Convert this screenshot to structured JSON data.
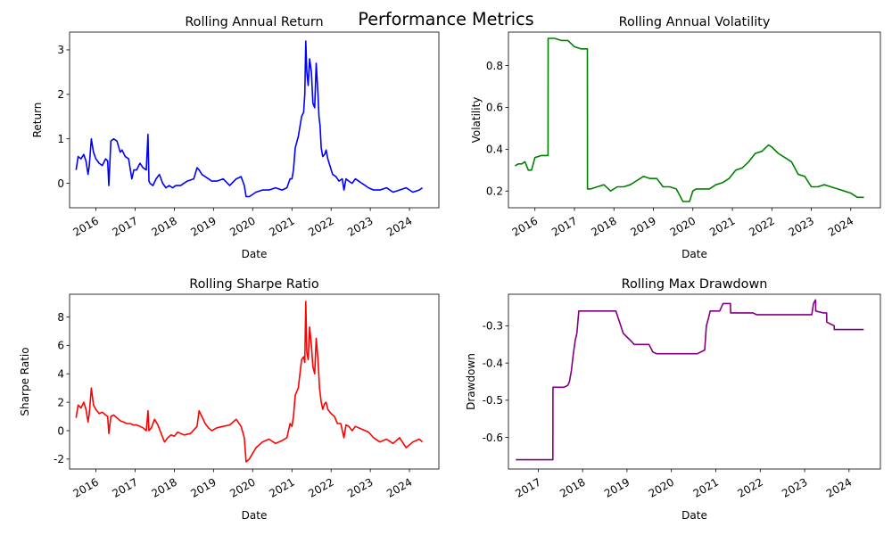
{
  "suptitle": "Performance Metrics",
  "chart_data": [
    {
      "type": "line",
      "title": "Rolling Annual Return",
      "xlabel": "Date",
      "ylabel": "Return",
      "color": "#0000ff",
      "x_tick_labels": [
        "2016",
        "2017",
        "2018",
        "2019",
        "2020",
        "2021",
        "2022",
        "2023",
        "2024"
      ],
      "x_ticks": [
        "2016-01-01",
        "2017-01-01",
        "2018-01-01",
        "2019-01-01",
        "2020-01-01",
        "2021-01-01",
        "2022-01-01",
        "2023-01-01",
        "2024-01-01"
      ],
      "xlim": [
        "2015-05-01",
        "2024-10-01"
      ],
      "y_ticks": [
        0,
        1,
        2,
        3
      ],
      "ylim": [
        -0.55,
        3.4
      ],
      "grid": false,
      "series": [
        {
          "x": [
            "2015-07-01",
            "2015-07-20",
            "2015-08-15",
            "2015-09-10",
            "2015-10-01",
            "2015-10-20",
            "2015-11-01",
            "2015-11-20",
            "2015-12-10",
            "2016-01-01",
            "2016-02-01",
            "2016-03-01",
            "2016-04-01",
            "2016-04-20",
            "2016-05-01",
            "2016-05-20",
            "2016-06-15",
            "2016-07-15",
            "2016-08-15",
            "2016-09-01",
            "2016-10-01",
            "2016-11-01",
            "2016-12-01",
            "2016-12-20",
            "2017-01-15",
            "2017-02-15",
            "2017-03-15",
            "2017-04-15",
            "2017-05-01",
            "2017-05-10",
            "2017-05-20",
            "2017-06-15",
            "2017-07-15",
            "2017-08-15",
            "2017-09-15",
            "2017-10-15",
            "2017-11-15",
            "2017-12-15",
            "2018-01-15",
            "2018-03-01",
            "2018-05-01",
            "2018-07-01",
            "2018-08-01",
            "2018-08-20",
            "2018-09-15",
            "2018-10-15",
            "2018-11-15",
            "2018-12-15",
            "2019-02-01",
            "2019-04-01",
            "2019-06-01",
            "2019-08-01",
            "2019-09-15",
            "2019-10-15",
            "2019-11-01",
            "2019-12-01",
            "2020-02-01",
            "2020-04-01",
            "2020-06-01",
            "2020-08-01",
            "2020-10-01",
            "2020-11-15",
            "2020-12-15",
            "2021-01-01",
            "2021-01-15",
            "2021-02-01",
            "2021-03-01",
            "2021-04-01",
            "2021-04-20",
            "2021-05-01",
            "2021-05-10",
            "2021-05-20",
            "2021-06-01",
            "2021-06-15",
            "2021-07-01",
            "2021-07-15",
            "2021-08-01",
            "2021-08-15",
            "2021-09-01",
            "2021-09-10",
            "2021-09-20",
            "2021-10-01",
            "2021-10-15",
            "2021-11-01",
            "2021-11-15",
            "2021-12-01",
            "2021-12-20",
            "2022-01-15",
            "2022-02-15",
            "2022-03-15",
            "2022-04-15",
            "2022-05-01",
            "2022-05-20",
            "2022-06-15",
            "2022-07-15",
            "2022-08-15",
            "2022-09-15",
            "2022-10-15",
            "2022-11-15",
            "2022-12-15",
            "2023-02-01",
            "2023-04-01",
            "2023-06-01",
            "2023-08-01",
            "2023-10-01",
            "2023-12-01",
            "2024-02-01",
            "2024-04-01",
            "2024-05-01"
          ],
          "y": [
            0.3,
            0.6,
            0.55,
            0.65,
            0.5,
            0.2,
            0.4,
            1.0,
            0.7,
            0.55,
            0.45,
            0.4,
            0.55,
            0.5,
            -0.05,
            0.95,
            1.0,
            0.95,
            0.7,
            0.75,
            0.6,
            0.55,
            0.1,
            0.3,
            0.3,
            0.45,
            0.35,
            0.3,
            1.1,
            0.05,
            0.0,
            -0.05,
            0.1,
            0.2,
            0.0,
            -0.1,
            -0.05,
            -0.1,
            -0.05,
            -0.05,
            0.05,
            0.1,
            0.35,
            0.3,
            0.2,
            0.15,
            0.1,
            0.05,
            0.05,
            0.1,
            -0.05,
            0.1,
            0.15,
            -0.05,
            -0.3,
            -0.3,
            -0.2,
            -0.15,
            -0.15,
            -0.1,
            -0.15,
            -0.1,
            0.1,
            0.1,
            0.3,
            0.8,
            1.05,
            1.5,
            1.6,
            2.0,
            3.2,
            2.5,
            2.2,
            2.8,
            2.5,
            1.8,
            1.7,
            2.7,
            2.0,
            1.5,
            1.3,
            0.8,
            0.6,
            0.65,
            0.75,
            0.55,
            0.4,
            0.2,
            0.15,
            0.05,
            0.1,
            -0.15,
            0.1,
            0.05,
            0.0,
            0.1,
            0.05,
            0.0,
            -0.05,
            -0.1,
            -0.15,
            -0.15,
            -0.1,
            -0.2,
            -0.15,
            -0.1,
            -0.2,
            -0.15,
            -0.1
          ]
        }
      ]
    },
    {
      "type": "line",
      "title": "Rolling Annual Volatility",
      "xlabel": "Date",
      "ylabel": "Volatility",
      "color": "#008000",
      "x_tick_labels": [
        "2016",
        "2017",
        "2018",
        "2019",
        "2020",
        "2021",
        "2022",
        "2023",
        "2024"
      ],
      "x_ticks": [
        "2016-01-01",
        "2017-01-01",
        "2018-01-01",
        "2019-01-01",
        "2020-01-01",
        "2021-01-01",
        "2022-01-01",
        "2023-01-01",
        "2024-01-01"
      ],
      "xlim": [
        "2015-05-01",
        "2024-10-01"
      ],
      "y_ticks": [
        0.2,
        0.4,
        0.6,
        0.8
      ],
      "ylim": [
        0.12,
        0.96
      ],
      "grid": false,
      "series": [
        {
          "x": [
            "2015-07-01",
            "2015-08-01",
            "2015-09-01",
            "2015-10-01",
            "2015-11-01",
            "2015-12-01",
            "2016-01-01",
            "2016-03-01",
            "2016-05-01",
            "2016-05-02",
            "2016-07-01",
            "2016-09-01",
            "2016-11-01",
            "2017-01-01",
            "2017-03-01",
            "2017-04-30",
            "2017-05-01",
            "2017-06-01",
            "2017-08-01",
            "2017-10-01",
            "2017-12-01",
            "2018-02-01",
            "2018-04-01",
            "2018-06-01",
            "2018-08-01",
            "2018-10-01",
            "2018-12-01",
            "2019-02-01",
            "2019-04-01",
            "2019-06-01",
            "2019-08-01",
            "2019-10-01",
            "2019-12-01",
            "2020-01-01",
            "2020-02-01",
            "2020-04-01",
            "2020-06-01",
            "2020-08-01",
            "2020-10-01",
            "2020-12-01",
            "2021-02-01",
            "2021-04-01",
            "2021-06-01",
            "2021-08-01",
            "2021-10-01",
            "2021-12-01",
            "2022-01-01",
            "2022-03-01",
            "2022-05-01",
            "2022-07-01",
            "2022-09-01",
            "2022-11-01",
            "2023-01-01",
            "2023-03-01",
            "2023-05-01",
            "2023-07-01",
            "2023-09-01",
            "2023-11-01",
            "2024-01-01",
            "2024-03-01",
            "2024-05-01"
          ],
          "y": [
            0.32,
            0.33,
            0.33,
            0.34,
            0.3,
            0.3,
            0.36,
            0.37,
            0.37,
            0.93,
            0.93,
            0.92,
            0.92,
            0.89,
            0.88,
            0.88,
            0.21,
            0.21,
            0.22,
            0.23,
            0.2,
            0.22,
            0.22,
            0.23,
            0.25,
            0.27,
            0.26,
            0.26,
            0.22,
            0.22,
            0.21,
            0.15,
            0.15,
            0.2,
            0.21,
            0.21,
            0.21,
            0.23,
            0.24,
            0.26,
            0.3,
            0.31,
            0.34,
            0.38,
            0.39,
            0.42,
            0.41,
            0.38,
            0.36,
            0.34,
            0.28,
            0.27,
            0.22,
            0.22,
            0.23,
            0.22,
            0.21,
            0.2,
            0.19,
            0.17,
            0.17
          ]
        }
      ]
    },
    {
      "type": "line",
      "title": "Rolling Sharpe Ratio",
      "xlabel": "Date",
      "ylabel": "Sharpe Ratio",
      "color": "#ff0000",
      "x_tick_labels": [
        "2016",
        "2017",
        "2018",
        "2019",
        "2020",
        "2021",
        "2022",
        "2023",
        "2024"
      ],
      "x_ticks": [
        "2016-01-01",
        "2017-01-01",
        "2018-01-01",
        "2019-01-01",
        "2020-01-01",
        "2021-01-01",
        "2022-01-01",
        "2023-01-01",
        "2024-01-01"
      ],
      "xlim": [
        "2015-05-01",
        "2024-10-01"
      ],
      "y_ticks": [
        -2,
        0,
        2,
        4,
        6,
        8
      ],
      "ylim": [
        -2.7,
        9.6
      ],
      "grid": false,
      "series": [
        {
          "x": [
            "2015-07-01",
            "2015-07-20",
            "2015-08-15",
            "2015-09-10",
            "2015-10-01",
            "2015-10-20",
            "2015-11-01",
            "2015-11-20",
            "2015-12-10",
            "2016-01-01",
            "2016-02-01",
            "2016-03-01",
            "2016-04-01",
            "2016-04-20",
            "2016-05-01",
            "2016-05-20",
            "2016-06-15",
            "2016-07-15",
            "2016-08-15",
            "2016-09-15",
            "2016-10-15",
            "2016-11-15",
            "2016-12-15",
            "2017-01-15",
            "2017-02-15",
            "2017-03-15",
            "2017-04-15",
            "2017-05-01",
            "2017-05-10",
            "2017-06-01",
            "2017-07-01",
            "2017-08-01",
            "2017-09-01",
            "2017-10-01",
            "2017-11-01",
            "2017-12-01",
            "2018-01-01",
            "2018-02-01",
            "2018-04-01",
            "2018-06-01",
            "2018-08-01",
            "2018-08-20",
            "2018-09-15",
            "2018-10-15",
            "2018-11-15",
            "2018-12-15",
            "2019-02-01",
            "2019-04-01",
            "2019-06-01",
            "2019-08-01",
            "2019-09-15",
            "2019-10-15",
            "2019-11-01",
            "2019-12-01",
            "2020-02-01",
            "2020-04-01",
            "2020-06-01",
            "2020-08-01",
            "2020-10-01",
            "2020-11-15",
            "2020-12-15",
            "2021-01-01",
            "2021-01-15",
            "2021-02-01",
            "2021-03-01",
            "2021-04-01",
            "2021-04-20",
            "2021-05-01",
            "2021-05-10",
            "2021-05-20",
            "2021-06-01",
            "2021-06-15",
            "2021-07-01",
            "2021-07-15",
            "2021-08-01",
            "2021-08-15",
            "2021-09-01",
            "2021-09-15",
            "2021-10-01",
            "2021-10-15",
            "2021-11-01",
            "2021-11-15",
            "2021-12-01",
            "2022-01-01",
            "2022-02-01",
            "2022-03-01",
            "2022-04-01",
            "2022-05-01",
            "2022-05-20",
            "2022-06-15",
            "2022-07-15",
            "2022-08-15",
            "2022-09-15",
            "2022-10-15",
            "2022-11-15",
            "2022-12-15",
            "2023-02-01",
            "2023-04-01",
            "2023-06-01",
            "2023-08-01",
            "2023-10-01",
            "2023-12-01",
            "2024-02-01",
            "2024-04-01",
            "2024-05-01"
          ],
          "y": [
            0.9,
            1.8,
            1.6,
            2.0,
            1.5,
            0.6,
            1.2,
            3.0,
            1.8,
            1.5,
            1.2,
            1.3,
            1.1,
            1.0,
            -0.2,
            1.0,
            1.1,
            0.9,
            0.7,
            0.6,
            0.5,
            0.5,
            0.4,
            0.4,
            0.3,
            0.2,
            0.0,
            1.4,
            0.0,
            0.2,
            0.8,
            0.4,
            -0.2,
            -0.8,
            -0.5,
            -0.3,
            -0.4,
            -0.1,
            -0.3,
            -0.2,
            0.3,
            1.4,
            1.0,
            0.5,
            0.2,
            0.0,
            0.2,
            0.3,
            0.4,
            0.8,
            0.3,
            -0.5,
            -2.2,
            -2.0,
            -1.2,
            -0.8,
            -0.6,
            -0.9,
            -0.7,
            -0.5,
            0.5,
            0.3,
            1.0,
            2.5,
            3.0,
            5.0,
            5.2,
            4.8,
            9.1,
            5.5,
            5.0,
            7.3,
            6.0,
            4.5,
            4.0,
            6.5,
            5.0,
            3.0,
            2.0,
            1.5,
            1.9,
            2.0,
            1.5,
            1.2,
            1.0,
            0.5,
            0.5,
            -0.5,
            0.4,
            0.3,
            0.0,
            0.3,
            0.2,
            0.1,
            0.0,
            -0.1,
            -0.5,
            -0.8,
            -0.6,
            -0.9,
            -0.5,
            -1.2,
            -0.8,
            -0.6,
            -0.8
          ]
        }
      ]
    },
    {
      "type": "line",
      "title": "Rolling Max Drawdown",
      "xlabel": "Date",
      "ylabel": "Drawdown",
      "color": "#800080",
      "x_tick_labels": [
        "2017",
        "2018",
        "2019",
        "2020",
        "2021",
        "2022",
        "2023",
        "2024"
      ],
      "x_ticks": [
        "2017-01-01",
        "2018-01-01",
        "2019-01-01",
        "2020-01-01",
        "2021-01-01",
        "2022-01-01",
        "2023-01-01",
        "2024-01-01"
      ],
      "xlim": [
        "2016-05-01",
        "2024-09-15"
      ],
      "y_ticks": [
        -0.6,
        -0.5,
        -0.4,
        -0.3
      ],
      "ylim": [
        -0.685,
        -0.215
      ],
      "grid": false,
      "series": [
        {
          "x": [
            "2016-07-01",
            "2017-05-01",
            "2017-05-02",
            "2017-06-01",
            "2017-08-01",
            "2017-09-01",
            "2017-09-15",
            "2017-10-01",
            "2017-10-15",
            "2017-11-01",
            "2017-11-15",
            "2017-12-01",
            "2018-06-01",
            "2018-08-01",
            "2018-09-01",
            "2018-10-01",
            "2018-11-01",
            "2018-12-01",
            "2019-01-01",
            "2019-02-01",
            "2019-03-01",
            "2019-05-01",
            "2019-07-01",
            "2019-08-01",
            "2019-09-01",
            "2019-11-01",
            "2020-06-01",
            "2020-08-01",
            "2020-10-01",
            "2020-10-15",
            "2020-11-01",
            "2020-11-15",
            "2020-12-01",
            "2021-02-01",
            "2021-03-01",
            "2021-04-01",
            "2021-05-01",
            "2021-05-02",
            "2021-07-01",
            "2021-09-01",
            "2021-11-01",
            "2021-12-01",
            "2022-06-01",
            "2023-01-01",
            "2023-03-01",
            "2023-03-15",
            "2023-04-01",
            "2023-04-02",
            "2023-06-01",
            "2023-07-01",
            "2023-07-02",
            "2023-09-01",
            "2023-09-02",
            "2024-01-01",
            "2024-05-01"
          ],
          "y": [
            -0.66,
            -0.66,
            -0.465,
            -0.465,
            -0.465,
            -0.46,
            -0.45,
            -0.42,
            -0.38,
            -0.34,
            -0.32,
            -0.26,
            -0.26,
            -0.26,
            -0.26,
            -0.26,
            -0.29,
            -0.32,
            -0.33,
            -0.34,
            -0.35,
            -0.35,
            -0.35,
            -0.37,
            -0.375,
            -0.375,
            -0.375,
            -0.375,
            -0.365,
            -0.3,
            -0.28,
            -0.26,
            -0.26,
            -0.26,
            -0.24,
            -0.24,
            -0.24,
            -0.265,
            -0.265,
            -0.265,
            -0.265,
            -0.27,
            -0.27,
            -0.27,
            -0.27,
            -0.24,
            -0.23,
            -0.26,
            -0.265,
            -0.265,
            -0.29,
            -0.3,
            -0.31,
            -0.31,
            -0.31
          ]
        }
      ]
    }
  ]
}
